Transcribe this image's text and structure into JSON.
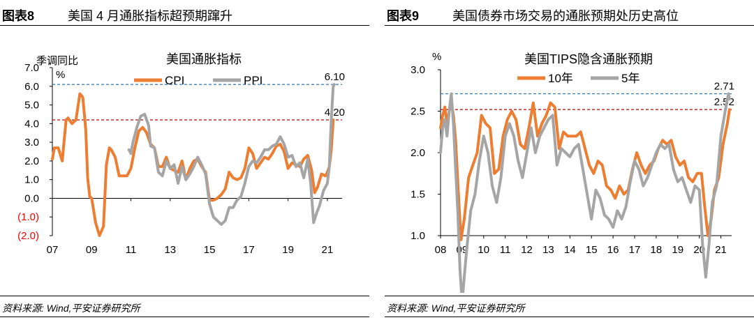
{
  "panels": [
    {
      "figure_label": "图表8",
      "title": "美国 4 月通胀指标超预期蹿升",
      "source": "资料来源: Wind,平安证券研究所"
    },
    {
      "figure_label": "图表9",
      "title": "美国债券市场交易的通胀预期处历史高位",
      "source": "资料来源: Wind,平安证券研究所"
    }
  ],
  "chart_data": [
    {
      "type": "line",
      "title": "美国通胀指标",
      "ylabel": "季调同比",
      "yunit": "%",
      "ylim": [
        -2.0,
        7.0
      ],
      "yticks": [
        "7.0",
        "6.0",
        "5.0",
        "4.0",
        "3.0",
        "2.0",
        "1.0",
        "0.0",
        "(1.0)",
        "(2.0)"
      ],
      "ytick_values": [
        7,
        6,
        5,
        4,
        3,
        2,
        1,
        0,
        -1,
        -2
      ],
      "negative_tick_color": "#ff0000",
      "xlim": [
        2007.0,
        2021.75
      ],
      "xticks": [
        "07",
        "09",
        "11",
        "13",
        "15",
        "17",
        "19",
        "21"
      ],
      "xtick_values": [
        2007,
        2009,
        2011,
        2013,
        2015,
        2017,
        2019,
        2021
      ],
      "legend_position": "top-center",
      "series": [
        {
          "name": "CPI",
          "color": "#ed7d31",
          "x": [
            2007.0,
            2007.1,
            2007.3,
            2007.5,
            2007.7,
            2007.8,
            2008.0,
            2008.2,
            2008.4,
            2008.55,
            2008.7,
            2008.8,
            2008.9,
            2009.0,
            2009.2,
            2009.4,
            2009.6,
            2009.75,
            2009.9,
            2010.0,
            2010.2,
            2010.4,
            2010.6,
            2010.8,
            2011.0,
            2011.2,
            2011.4,
            2011.6,
            2011.8,
            2012.0,
            2012.2,
            2012.4,
            2012.6,
            2012.8,
            2013.0,
            2013.2,
            2013.4,
            2013.6,
            2013.8,
            2014.0,
            2014.2,
            2014.4,
            2014.6,
            2014.8,
            2015.0,
            2015.2,
            2015.4,
            2015.6,
            2015.8,
            2016.0,
            2016.2,
            2016.4,
            2016.6,
            2016.8,
            2017.0,
            2017.2,
            2017.4,
            2017.6,
            2017.8,
            2018.0,
            2018.2,
            2018.4,
            2018.6,
            2018.8,
            2019.0,
            2019.2,
            2019.4,
            2019.6,
            2019.8,
            2020.0,
            2020.2,
            2020.35,
            2020.5,
            2020.7,
            2020.9,
            2021.0,
            2021.1,
            2021.2,
            2021.3
          ],
          "values": [
            2.1,
            2.7,
            2.7,
            2.0,
            4.2,
            4.3,
            4.0,
            4.2,
            5.6,
            5.4,
            3.7,
            1.1,
            0.1,
            0.0,
            -1.3,
            -2.0,
            -1.5,
            1.8,
            2.7,
            2.6,
            2.2,
            1.2,
            1.2,
            1.2,
            1.6,
            2.7,
            3.6,
            3.8,
            3.5,
            2.9,
            2.7,
            1.7,
            1.7,
            2.2,
            1.6,
            1.5,
            1.4,
            2.0,
            1.0,
            1.6,
            2.0,
            2.1,
            1.7,
            1.4,
            -0.1,
            -0.1,
            0.0,
            0.2,
            0.5,
            1.4,
            1.1,
            1.0,
            1.1,
            1.6,
            2.7,
            2.4,
            1.6,
            1.9,
            2.2,
            2.1,
            2.4,
            2.8,
            2.9,
            2.5,
            1.6,
            1.9,
            1.8,
            1.7,
            2.1,
            2.3,
            1.5,
            0.3,
            0.6,
            1.3,
            1.2,
            1.4,
            1.7,
            2.6,
            4.2
          ]
        },
        {
          "name": "PPI",
          "color": "#a5a5a5",
          "x": [
            2010.9,
            2011.0,
            2011.1,
            2011.3,
            2011.5,
            2011.7,
            2011.9,
            2012.0,
            2012.2,
            2012.4,
            2012.6,
            2012.8,
            2013.0,
            2013.2,
            2013.4,
            2013.6,
            2013.8,
            2014.0,
            2014.2,
            2014.4,
            2014.6,
            2014.8,
            2015.0,
            2015.2,
            2015.4,
            2015.6,
            2015.8,
            2016.0,
            2016.2,
            2016.4,
            2016.6,
            2016.8,
            2017.0,
            2017.2,
            2017.4,
            2017.6,
            2017.8,
            2018.0,
            2018.2,
            2018.4,
            2018.6,
            2018.8,
            2019.0,
            2019.2,
            2019.4,
            2019.6,
            2019.8,
            2020.0,
            2020.15,
            2020.3,
            2020.45,
            2020.6,
            2020.8,
            2021.0,
            2021.1,
            2021.2,
            2021.3,
            2021.35
          ],
          "values": [
            2.6,
            2.4,
            3.0,
            3.8,
            4.4,
            4.5,
            3.9,
            2.8,
            2.7,
            1.4,
            1.2,
            2.0,
            1.6,
            1.8,
            0.8,
            1.7,
            1.0,
            1.3,
            1.7,
            2.2,
            1.8,
            1.3,
            -0.3,
            -1.0,
            -1.2,
            -1.4,
            -1.2,
            -0.5,
            -0.5,
            -0.1,
            0.1,
            0.8,
            1.7,
            2.0,
            1.9,
            2.2,
            2.6,
            2.6,
            2.8,
            2.9,
            3.3,
            2.9,
            2.2,
            2.3,
            1.7,
            1.9,
            1.1,
            2.1,
            0.8,
            -1.3,
            -0.8,
            -0.4,
            0.4,
            0.8,
            1.7,
            4.2,
            6.0,
            6.1
          ]
        }
      ],
      "reference_lines": [
        {
          "value": 6.1,
          "label": "6.10",
          "color": "#2e75b6"
        },
        {
          "value": 4.2,
          "label": "4.20",
          "color": "#c00000"
        }
      ]
    },
    {
      "type": "line",
      "title": "美国TIPS隐含通胀预期",
      "yunit": "%",
      "ylim": [
        1.0,
        3.0
      ],
      "yticks": [
        "3.0",
        "2.5",
        "2.0",
        "1.5",
        "1.0"
      ],
      "ytick_values": [
        3.0,
        2.5,
        2.0,
        1.5,
        1.0
      ],
      "xlim": [
        2008.0,
        2021.5
      ],
      "xticks": [
        "08",
        "09",
        "10",
        "11",
        "12",
        "13",
        "14",
        "15",
        "16",
        "17",
        "18",
        "19",
        "20",
        "21"
      ],
      "xtick_values": [
        2008,
        2009,
        2010,
        2011,
        2012,
        2013,
        2014,
        2015,
        2016,
        2017,
        2018,
        2019,
        2020,
        2021
      ],
      "legend_position": "top-center",
      "series": [
        {
          "name": "10年",
          "color": "#ed7d31",
          "x": [
            2008.0,
            2008.1,
            2008.2,
            2008.3,
            2008.4,
            2008.5,
            2008.6,
            2008.7,
            2008.85,
            2008.95,
            2009.1,
            2009.3,
            2009.5,
            2009.7,
            2009.9,
            2010.1,
            2010.3,
            2010.5,
            2010.7,
            2010.9,
            2011.1,
            2011.3,
            2011.5,
            2011.7,
            2011.9,
            2012.1,
            2012.3,
            2012.5,
            2012.7,
            2012.9,
            2013.1,
            2013.3,
            2013.5,
            2013.7,
            2013.9,
            2014.1,
            2014.3,
            2014.5,
            2014.7,
            2014.9,
            2015.1,
            2015.3,
            2015.5,
            2015.7,
            2015.9,
            2016.1,
            2016.3,
            2016.5,
            2016.7,
            2016.9,
            2017.1,
            2017.3,
            2017.5,
            2017.7,
            2017.9,
            2018.1,
            2018.3,
            2018.5,
            2018.7,
            2018.9,
            2019.1,
            2019.3,
            2019.5,
            2019.7,
            2019.9,
            2020.1,
            2020.25,
            2020.4,
            2020.55,
            2020.7,
            2020.9,
            2021.1,
            2021.3,
            2021.4
          ],
          "values": [
            2.3,
            2.45,
            2.55,
            2.35,
            2.5,
            2.6,
            2.45,
            2.15,
            1.4,
            0.95,
            1.2,
            1.7,
            1.85,
            2.0,
            2.45,
            2.35,
            2.3,
            1.75,
            1.8,
            2.2,
            2.4,
            2.5,
            2.4,
            2.1,
            2.05,
            2.3,
            2.6,
            2.2,
            2.35,
            2.45,
            2.6,
            2.55,
            2.05,
            2.25,
            2.2,
            2.2,
            2.2,
            2.25,
            2.05,
            1.85,
            1.75,
            1.9,
            1.85,
            1.6,
            1.55,
            1.45,
            1.6,
            1.5,
            1.55,
            1.8,
            2.0,
            1.85,
            1.75,
            1.85,
            1.9,
            2.05,
            2.15,
            2.1,
            2.15,
            1.95,
            1.85,
            1.9,
            1.7,
            1.65,
            1.75,
            1.75,
            1.35,
            1.0,
            1.2,
            1.55,
            1.7,
            2.1,
            2.35,
            2.52
          ]
        },
        {
          "name": "5年",
          "color": "#a5a5a5",
          "x": [
            2008.0,
            2008.1,
            2008.2,
            2008.3,
            2008.4,
            2008.5,
            2008.6,
            2008.7,
            2008.8,
            2008.9,
            2009.0,
            2009.2,
            2009.4,
            2009.6,
            2009.8,
            2010.0,
            2010.2,
            2010.4,
            2010.6,
            2010.8,
            2011.0,
            2011.2,
            2011.4,
            2011.6,
            2011.8,
            2012.0,
            2012.2,
            2012.4,
            2012.6,
            2012.8,
            2013.0,
            2013.2,
            2013.4,
            2013.6,
            2013.8,
            2014.0,
            2014.2,
            2014.4,
            2014.6,
            2014.8,
            2015.0,
            2015.2,
            2015.4,
            2015.6,
            2015.8,
            2016.0,
            2016.2,
            2016.4,
            2016.6,
            2016.8,
            2017.0,
            2017.2,
            2017.4,
            2017.6,
            2017.8,
            2018.0,
            2018.2,
            2018.4,
            2018.6,
            2018.8,
            2019.0,
            2019.2,
            2019.4,
            2019.6,
            2019.8,
            2020.0,
            2020.15,
            2020.3,
            2020.45,
            2020.6,
            2020.8,
            2021.0,
            2021.2,
            2021.35,
            2021.4
          ],
          "values": [
            2.0,
            2.3,
            2.4,
            2.2,
            2.5,
            2.71,
            2.35,
            1.8,
            1.3,
            0.6,
            0.2,
            0.8,
            1.3,
            1.5,
            1.9,
            2.2,
            2.0,
            1.6,
            1.4,
            1.7,
            2.2,
            2.35,
            2.2,
            1.9,
            1.7,
            2.0,
            2.3,
            2.0,
            2.2,
            2.3,
            2.4,
            2.45,
            1.85,
            2.05,
            2.0,
            1.95,
            2.05,
            2.1,
            1.8,
            1.5,
            1.2,
            1.55,
            1.45,
            1.25,
            1.2,
            1.1,
            1.3,
            1.2,
            1.35,
            1.65,
            1.9,
            1.8,
            1.6,
            1.7,
            1.85,
            2.0,
            2.1,
            2.05,
            2.1,
            1.8,
            1.65,
            1.7,
            1.55,
            1.4,
            1.6,
            1.55,
            0.9,
            0.5,
            0.9,
            1.4,
            1.6,
            2.2,
            2.5,
            2.71,
            2.65
          ]
        }
      ],
      "reference_lines": [
        {
          "value": 2.71,
          "label": "2.71",
          "color": "#2e75b6"
        },
        {
          "value": 2.52,
          "label": "2.52",
          "color": "#c00000"
        }
      ]
    }
  ]
}
